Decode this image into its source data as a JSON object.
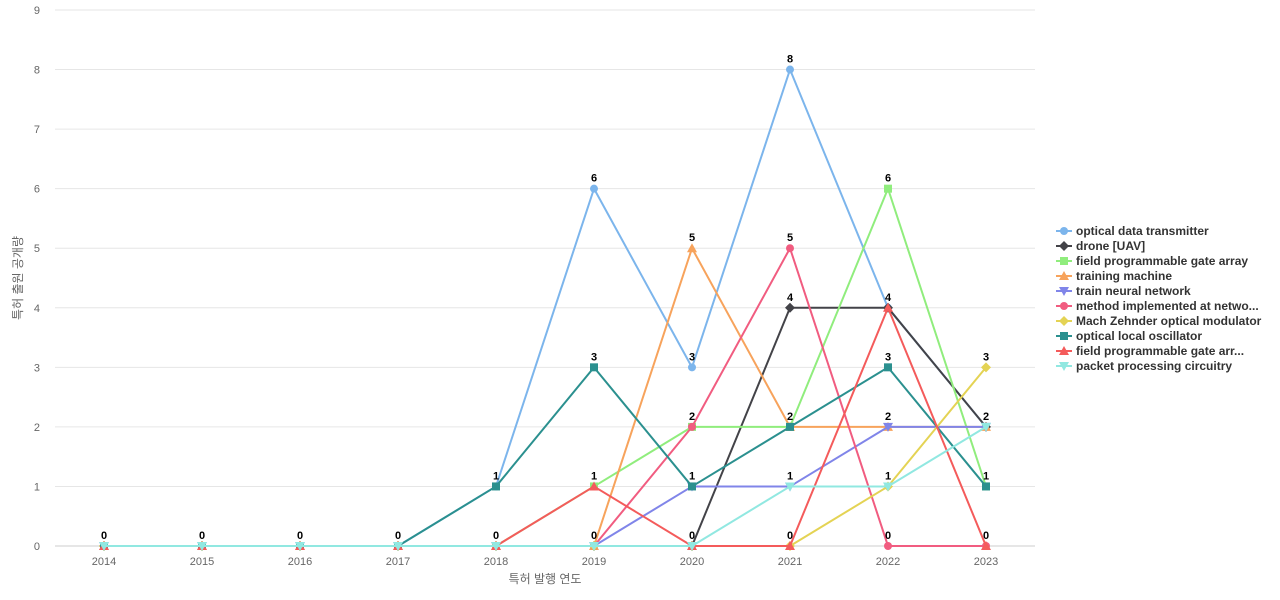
{
  "chart_data": {
    "type": "line",
    "xlabel": "특허 발행 연도",
    "ylabel": "특허 출원 공개량",
    "ylim": [
      0,
      9
    ],
    "y_ticks": [
      "0",
      "1",
      "2",
      "3",
      "4",
      "5",
      "6",
      "7",
      "8",
      "9"
    ],
    "categories": [
      "2014",
      "2015",
      "2016",
      "2017",
      "2018",
      "2019",
      "2020",
      "2021",
      "2022",
      "2023"
    ],
    "grid": true,
    "legend_position": "right",
    "series": [
      {
        "name": "optical data transmitter",
        "color": "#7cb5ec",
        "marker": "circle",
        "values": [
          0,
          0,
          0,
          0,
          1,
          6,
          3,
          8,
          4,
          2
        ]
      },
      {
        "name": "drone [UAV]",
        "color": "#434348",
        "marker": "diamond",
        "values": [
          0,
          0,
          0,
          0,
          0,
          0,
          0,
          4,
          4,
          2
        ]
      },
      {
        "name": "field programmable gate array",
        "color": "#90ed7d",
        "marker": "square",
        "values": [
          0,
          0,
          0,
          0,
          0,
          1,
          2,
          2,
          6,
          1
        ]
      },
      {
        "name": "training machine",
        "color": "#f7a35c",
        "marker": "triangle",
        "values": [
          0,
          0,
          0,
          0,
          0,
          0,
          5,
          2,
          2,
          2
        ]
      },
      {
        "name": "train neural network",
        "color": "#8085e9",
        "marker": "triangle-down",
        "values": [
          0,
          0,
          0,
          0,
          0,
          0,
          1,
          1,
          2,
          2
        ]
      },
      {
        "name": "method implemented at netwo...",
        "color": "#f15c80",
        "marker": "circle",
        "values": [
          0,
          0,
          0,
          0,
          0,
          0,
          2,
          5,
          0,
          0
        ]
      },
      {
        "name": "Mach Zehnder optical modulator",
        "color": "#e4d354",
        "marker": "diamond",
        "values": [
          0,
          0,
          0,
          0,
          0,
          0,
          0,
          0,
          1,
          3
        ]
      },
      {
        "name": "optical local oscillator",
        "color": "#2b908f",
        "marker": "square",
        "values": [
          0,
          0,
          0,
          0,
          1,
          3,
          1,
          2,
          3,
          1
        ]
      },
      {
        "name": "field programmable gate arr...",
        "color": "#f45b5b",
        "marker": "triangle",
        "values": [
          0,
          0,
          0,
          0,
          0,
          1,
          0,
          0,
          4,
          0
        ]
      },
      {
        "name": "packet processing circuitry",
        "color": "#91e8e1",
        "marker": "triangle-down",
        "values": [
          0,
          0,
          0,
          0,
          0,
          0,
          0,
          1,
          1,
          2
        ]
      }
    ],
    "data_labels": [
      {
        "x": "2014",
        "text": "0",
        "value": 0
      },
      {
        "x": "2015",
        "text": "0",
        "value": 0
      },
      {
        "x": "2016",
        "text": "0",
        "value": 0
      },
      {
        "x": "2017",
        "text": "0",
        "value": 0
      },
      {
        "x": "2018",
        "text": "1",
        "value": 1
      },
      {
        "x": "2018",
        "text": "0",
        "value": 0
      },
      {
        "x": "2019",
        "text": "6",
        "value": 6
      },
      {
        "x": "2019",
        "text": "3",
        "value": 3
      },
      {
        "x": "2019",
        "text": "1",
        "value": 1
      },
      {
        "x": "2019",
        "text": "0",
        "value": 0
      },
      {
        "x": "2020",
        "text": "5",
        "value": 5
      },
      {
        "x": "2020",
        "text": "3",
        "value": 3
      },
      {
        "x": "2020",
        "text": "2",
        "value": 2
      },
      {
        "x": "2020",
        "text": "1",
        "value": 1
      },
      {
        "x": "2020",
        "text": "0",
        "value": 0
      },
      {
        "x": "2021",
        "text": "8",
        "value": 8
      },
      {
        "x": "2021",
        "text": "5",
        "value": 5
      },
      {
        "x": "2021",
        "text": "4",
        "value": 4
      },
      {
        "x": "2021",
        "text": "2",
        "value": 2
      },
      {
        "x": "2021",
        "text": "1",
        "value": 1
      },
      {
        "x": "2021",
        "text": "0",
        "value": 0
      },
      {
        "x": "2022",
        "text": "6",
        "value": 6
      },
      {
        "x": "2022",
        "text": "4",
        "value": 4
      },
      {
        "x": "2022",
        "text": "3",
        "value": 3
      },
      {
        "x": "2022",
        "text": "2",
        "value": 2
      },
      {
        "x": "2022",
        "text": "1",
        "value": 1
      },
      {
        "x": "2022",
        "text": "0",
        "value": 0
      },
      {
        "x": "2023",
        "text": "3",
        "value": 3
      },
      {
        "x": "2023",
        "text": "2",
        "value": 2
      },
      {
        "x": "2023",
        "text": "1",
        "value": 1
      },
      {
        "x": "2023",
        "text": "0",
        "value": 0
      }
    ]
  }
}
